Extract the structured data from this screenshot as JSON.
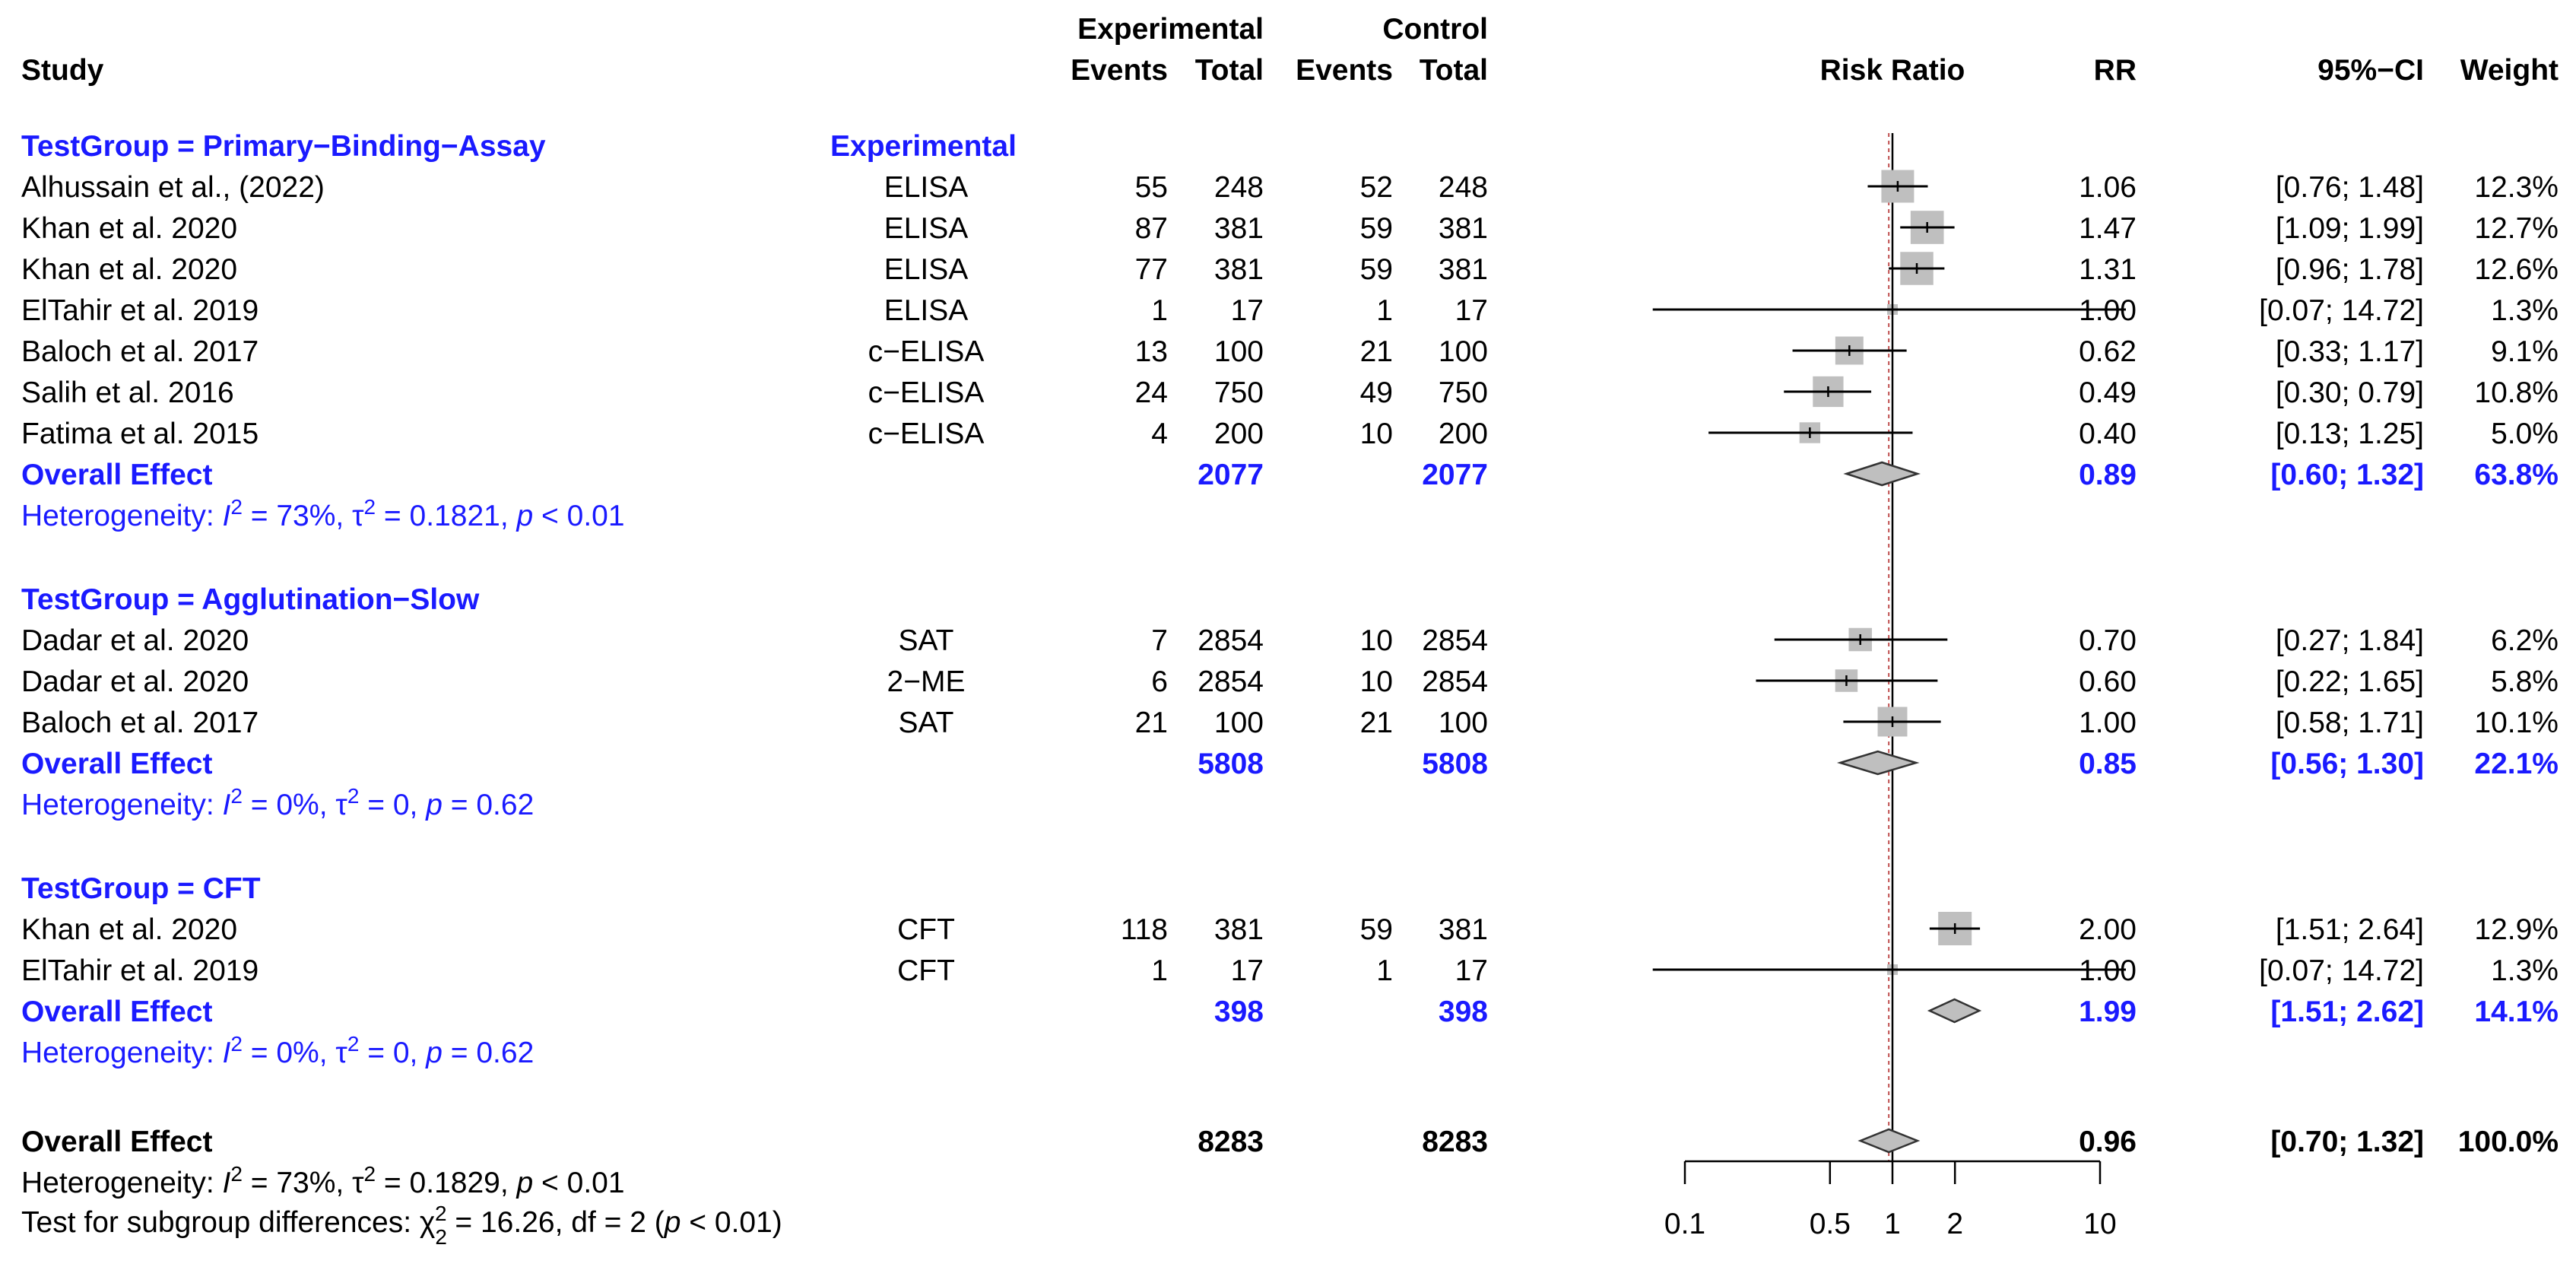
{
  "chart_data": {
    "type": "forest",
    "headers": {
      "study": "Study",
      "experimental": "Experimental",
      "control": "Control",
      "events": "Events",
      "total": "Total",
      "risk_ratio": "Risk Ratio",
      "rr": "RR",
      "ci": "95%−CI",
      "weight": "Weight"
    },
    "group_column_label": "Experimental",
    "colors": {
      "accent": "#1a1aff",
      "square": "#bfbfbf",
      "diamond": "#bfbfbf",
      "null_line": "#c05050"
    },
    "x_axis": {
      "scale": "log",
      "range": [
        0.1,
        10
      ],
      "ticks": [
        0.1,
        0.5,
        1,
        2,
        10
      ],
      "tick_labels": [
        "0.1",
        "0.5",
        "1",
        "2",
        "10"
      ]
    },
    "groups": [
      {
        "title": "TestGroup = Primary−Binding−Assay",
        "studies": [
          {
            "study": "Alhussain et al., (2022)",
            "test": "ELISA",
            "exp_events": "55",
            "exp_total": "248",
            "ctl_events": "52",
            "ctl_total": "248",
            "rr": 1.06,
            "lo": 0.76,
            "hi": 1.48,
            "weight": 12.3,
            "rr_text": "1.06",
            "ci_text": "[0.76;  1.48]",
            "weight_text": "12.3%"
          },
          {
            "study": "Khan et al. 2020",
            "test": "ELISA",
            "exp_events": "87",
            "exp_total": "381",
            "ctl_events": "59",
            "ctl_total": "381",
            "rr": 1.47,
            "lo": 1.09,
            "hi": 1.99,
            "weight": 12.7,
            "rr_text": "1.47",
            "ci_text": "[1.09;  1.99]",
            "weight_text": "12.7%"
          },
          {
            "study": "Khan et al. 2020",
            "test": "ELISA",
            "exp_events": "77",
            "exp_total": "381",
            "ctl_events": "59",
            "ctl_total": "381",
            "rr": 1.31,
            "lo": 0.96,
            "hi": 1.78,
            "weight": 12.6,
            "rr_text": "1.31",
            "ci_text": "[0.96;  1.78]",
            "weight_text": "12.6%"
          },
          {
            "study": "ElTahir et al. 2019",
            "test": "ELISA",
            "exp_events": "1",
            "exp_total": "17",
            "ctl_events": "1",
            "ctl_total": "17",
            "rr": 1.0,
            "lo": 0.07,
            "hi": 14.72,
            "weight": 1.3,
            "rr_text": "1.00",
            "ci_text": "[0.07; 14.72]",
            "weight_text": "1.3%"
          },
          {
            "study": "Baloch et al. 2017",
            "test": "c−ELISA",
            "exp_events": "13",
            "exp_total": "100",
            "ctl_events": "21",
            "ctl_total": "100",
            "rr": 0.62,
            "lo": 0.33,
            "hi": 1.17,
            "weight": 9.1,
            "rr_text": "0.62",
            "ci_text": "[0.33;  1.17]",
            "weight_text": "9.1%"
          },
          {
            "study": "Salih et al. 2016",
            "test": "c−ELISA",
            "exp_events": "24",
            "exp_total": "750",
            "ctl_events": "49",
            "ctl_total": "750",
            "rr": 0.49,
            "lo": 0.3,
            "hi": 0.79,
            "weight": 10.8,
            "rr_text": "0.49",
            "ci_text": "[0.30;  0.79]",
            "weight_text": "10.8%"
          },
          {
            "study": "Fatima et al. 2015",
            "test": "c−ELISA",
            "exp_events": "4",
            "exp_total": "200",
            "ctl_events": "10",
            "ctl_total": "200",
            "rr": 0.4,
            "lo": 0.13,
            "hi": 1.25,
            "weight": 5.0,
            "rr_text": "0.40",
            "ci_text": "[0.13;  1.25]",
            "weight_text": "5.0%"
          }
        ],
        "overall": {
          "label": "Overall Effect",
          "exp_total": "2077",
          "ctl_total": "2077",
          "rr": 0.89,
          "lo": 0.6,
          "hi": 1.32,
          "rr_text": "0.89",
          "ci_text": "[0.60;  1.32]",
          "weight_text": "63.8%"
        },
        "heterogeneity": {
          "prefix": "Heterogeneity: ",
          "i2_symbol": "I",
          "i2_value": " = 73%, τ",
          "tau2_value": " = 0.1821, ",
          "p_symbol": "p",
          "p_value": " < 0.01"
        }
      },
      {
        "title": "TestGroup = Agglutination−Slow",
        "studies": [
          {
            "study": "Dadar et al. 2020",
            "test": "SAT",
            "exp_events": "7",
            "exp_total": "2854",
            "ctl_events": "10",
            "ctl_total": "2854",
            "rr": 0.7,
            "lo": 0.27,
            "hi": 1.84,
            "weight": 6.2,
            "rr_text": "0.70",
            "ci_text": "[0.27;  1.84]",
            "weight_text": "6.2%"
          },
          {
            "study": "Dadar et al. 2020",
            "test": "2−ME",
            "exp_events": "6",
            "exp_total": "2854",
            "ctl_events": "10",
            "ctl_total": "2854",
            "rr": 0.6,
            "lo": 0.22,
            "hi": 1.65,
            "weight": 5.8,
            "rr_text": "0.60",
            "ci_text": "[0.22;  1.65]",
            "weight_text": "5.8%"
          },
          {
            "study": "Baloch et al. 2017",
            "test": "SAT",
            "exp_events": "21",
            "exp_total": "100",
            "ctl_events": "21",
            "ctl_total": "100",
            "rr": 1.0,
            "lo": 0.58,
            "hi": 1.71,
            "weight": 10.1,
            "rr_text": "1.00",
            "ci_text": "[0.58;  1.71]",
            "weight_text": "10.1%"
          }
        ],
        "overall": {
          "label": "Overall Effect",
          "exp_total": "5808",
          "ctl_total": "5808",
          "rr": 0.85,
          "lo": 0.56,
          "hi": 1.3,
          "rr_text": "0.85",
          "ci_text": "[0.56;  1.30]",
          "weight_text": "22.1%"
        },
        "heterogeneity": {
          "prefix": "Heterogeneity: ",
          "i2_symbol": "I",
          "i2_value": " = 0%, τ",
          "tau2_value": " = 0, ",
          "p_symbol": "p",
          "p_value": " = 0.62"
        }
      },
      {
        "title": "TestGroup = CFT",
        "studies": [
          {
            "study": "Khan et al. 2020",
            "test": "CFT",
            "exp_events": "118",
            "exp_total": "381",
            "ctl_events": "59",
            "ctl_total": "381",
            "rr": 2.0,
            "lo": 1.51,
            "hi": 2.64,
            "weight": 12.9,
            "rr_text": "2.00",
            "ci_text": "[1.51;  2.64]",
            "weight_text": "12.9%"
          },
          {
            "study": "ElTahir et al. 2019",
            "test": "CFT",
            "exp_events": "1",
            "exp_total": "17",
            "ctl_events": "1",
            "ctl_total": "17",
            "rr": 1.0,
            "lo": 0.07,
            "hi": 14.72,
            "weight": 1.3,
            "rr_text": "1.00",
            "ci_text": "[0.07; 14.72]",
            "weight_text": "1.3%"
          }
        ],
        "overall": {
          "label": "Overall Effect",
          "exp_total": "398",
          "ctl_total": "398",
          "rr": 1.99,
          "lo": 1.51,
          "hi": 2.62,
          "rr_text": "1.99",
          "ci_text": "[1.51;  2.62]",
          "weight_text": "14.1%"
        },
        "heterogeneity": {
          "prefix": "Heterogeneity: ",
          "i2_symbol": "I",
          "i2_value": " = 0%, τ",
          "tau2_value": " = 0, ",
          "p_symbol": "p",
          "p_value": " = 0.62"
        }
      }
    ],
    "overall": {
      "label": "Overall Effect",
      "exp_total": "8283",
      "ctl_total": "8283",
      "rr": 0.96,
      "lo": 0.7,
      "hi": 1.32,
      "rr_text": "0.96",
      "ci_text": "[0.70;  1.32]",
      "weight_text": "100.0%",
      "heterogeneity": {
        "prefix": "Heterogeneity: ",
        "i2_symbol": "I",
        "i2_value": " = 73%, τ",
        "tau2_value": " = 0.1829, ",
        "p_symbol": "p",
        "p_value": " < 0.01"
      },
      "subgroup_test": {
        "prefix": "Test for subgroup differences: χ",
        "chi_sub": "2",
        "chi_sup": "2",
        "middle": " = 16.26, df = 2 (",
        "p_symbol": "p",
        "suffix": " < 0.01)"
      }
    }
  }
}
